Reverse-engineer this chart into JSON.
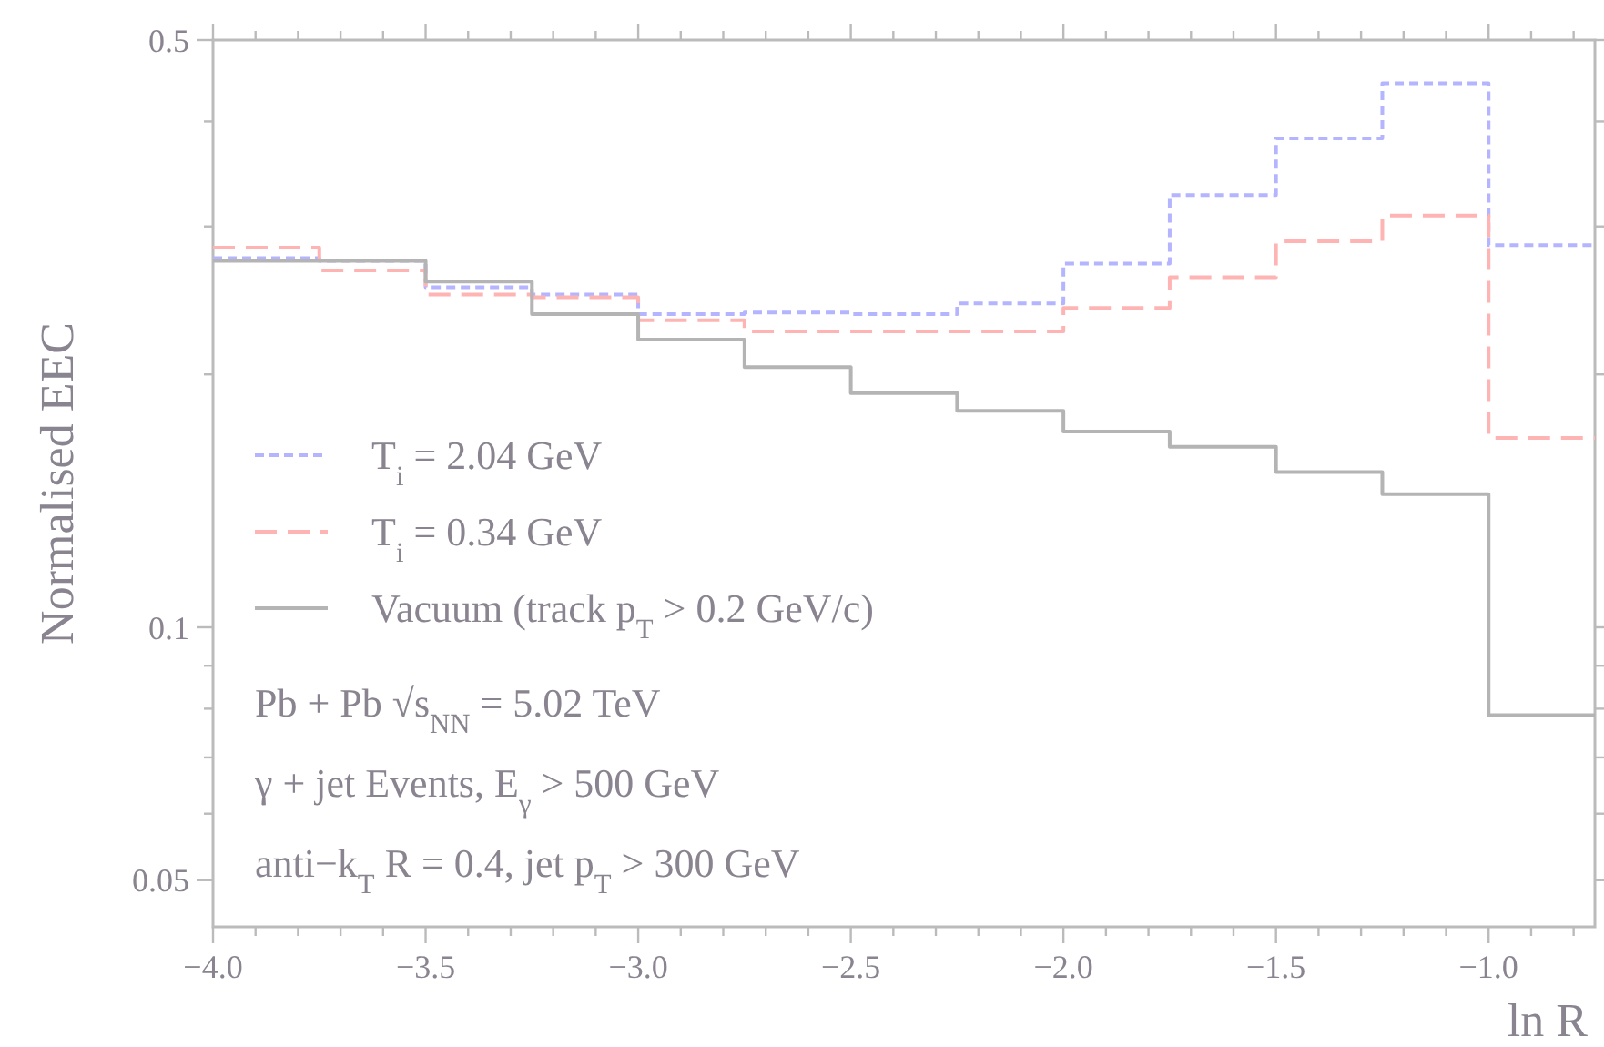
{
  "chart_data": {
    "type": "histogram",
    "xlabel": "ln R",
    "ylabel": "Normalised EEC",
    "log": "y",
    "xlim": [
      -4,
      -0.75
    ],
    "ylim": [
      0.044,
      0.5
    ],
    "xticks": [
      {
        "value": -4,
        "label": "−4.0"
      },
      {
        "value": -3.9,
        "label": null
      },
      {
        "value": -3.8,
        "label": null
      },
      {
        "value": -3.7,
        "label": null
      },
      {
        "value": -3.6,
        "label": null
      },
      {
        "value": -3.5,
        "label": "−3.5"
      },
      {
        "value": -3.4,
        "label": null
      },
      {
        "value": -3.3,
        "label": null
      },
      {
        "value": -3.2,
        "label": null
      },
      {
        "value": -3.1,
        "label": null
      },
      {
        "value": -3,
        "label": "−3.0"
      },
      {
        "value": -2.9,
        "label": null
      },
      {
        "value": -2.8,
        "label": null
      },
      {
        "value": -2.7,
        "label": null
      },
      {
        "value": -2.6,
        "label": null
      },
      {
        "value": -2.5,
        "label": "−2.5"
      },
      {
        "value": -2.4,
        "label": null
      },
      {
        "value": -2.3,
        "label": null
      },
      {
        "value": -2.2,
        "label": null
      },
      {
        "value": -2.1,
        "label": null
      },
      {
        "value": -2,
        "label": "−2.0"
      },
      {
        "value": -1.9,
        "label": null
      },
      {
        "value": -1.8,
        "label": null
      },
      {
        "value": -1.7,
        "label": null
      },
      {
        "value": -1.6,
        "label": null
      },
      {
        "value": -1.5,
        "label": "−1.5"
      },
      {
        "value": -1.4,
        "label": null
      },
      {
        "value": -1.3,
        "label": null
      },
      {
        "value": -1.2,
        "label": null
      },
      {
        "value": -1.1,
        "label": null
      },
      {
        "value": -1,
        "label": "−1.0"
      },
      {
        "value": -0.9,
        "label": null
      },
      {
        "value": -0.8,
        "label": null
      }
    ],
    "yticks": [
      0.05,
      {
        "value": 0.06,
        "label": null
      },
      {
        "value": 0.07,
        "label": null
      },
      {
        "value": 0.08,
        "label": null
      },
      {
        "value": 0.09,
        "label": null
      },
      0.1,
      {
        "value": 0.2,
        "label": null
      },
      {
        "value": 0.3,
        "label": null
      },
      {
        "value": 0.4,
        "label": null
      },
      0.5
    ],
    "bins": [
      -4,
      -3.75,
      -3.5,
      -3.25,
      -3,
      -2.75,
      -2.5,
      -2.25,
      -2,
      -1.75,
      -1.5,
      -1.25,
      -1,
      -0.75
    ],
    "series": [
      {
        "name": "T$_{i}$ = 2.04 GeV",
        "color": "#b4b4ff",
        "line_style": "dotted",
        "values": [
          0.275,
          0.273,
          0.254,
          0.249,
          0.236,
          0.237,
          0.236,
          0.243,
          0.271,
          0.327,
          0.382,
          0.444,
          0.285
        ]
      },
      {
        "name": "T$_{i}$ = 0.34 GeV",
        "color": "#ffb4b4",
        "line_style": "dashed",
        "values": [
          0.283,
          0.266,
          0.249,
          0.247,
          0.232,
          0.225,
          0.225,
          0.225,
          0.24,
          0.261,
          0.288,
          0.309,
          0.168
        ]
      },
      {
        "name": "Vacuum (track p$_{T}$ > 0.2 GeV/c)",
        "color": "#b4b4b4",
        "line_style": "solid",
        "values": [
          0.273,
          0.273,
          0.258,
          0.236,
          0.22,
          0.204,
          0.19,
          0.181,
          0.171,
          0.164,
          0.153,
          0.144,
          0.0786
        ]
      }
    ],
    "legend": "left",
    "grid": false,
    "annotations": [
      "Pb + Pb √s$_{NN}$ = 5.02 TeV",
      "γ + jet Events, E$_{γ}$ > 500 GeV",
      "anti−k$_{T}$ R = 0.4, jet p$_{T}$ > 300 GeV"
    ]
  }
}
